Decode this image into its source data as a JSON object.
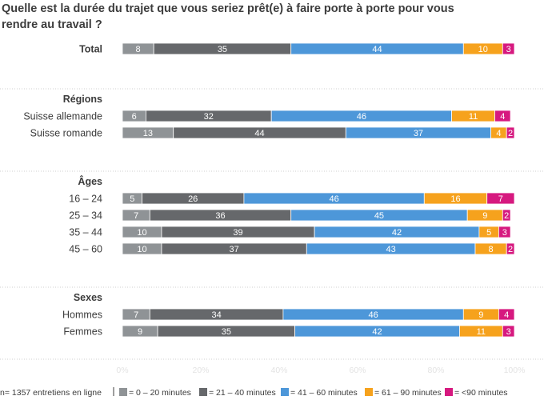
{
  "chart_data": {
    "type": "bar",
    "orientation": "horizontal",
    "stacked": true,
    "title_lines": [
      "Quelle est la durée du trajet que vous seriez prêt(e) à faire porte à porte pour vous",
      "rendre au travail ?"
    ],
    "xlim": [
      0,
      100
    ],
    "x_ticks": [
      "0%",
      "20%",
      "40%",
      "60%",
      "80%",
      "100%"
    ],
    "grid": false,
    "legend_position": "bottom",
    "note": "n= 1357 entretiens en ligne",
    "series": [
      {
        "name": "= 0 – 20 minutes",
        "color": "#8f9396",
        "label_color": "#ffffff"
      },
      {
        "name": "= 21 – 40 minutes",
        "color": "#66686b",
        "label_color": "#ffffff"
      },
      {
        "name": "= 41 – 60 minutes",
        "color": "#4d97d9",
        "label_color": "#ffffff"
      },
      {
        "name": "= 61 – 90 minutes",
        "color": "#f6a21d",
        "label_color": "#ffffff"
      },
      {
        "name": "= <90 minutes",
        "color": "#d6197f",
        "label_color": "#ffffff"
      }
    ],
    "groups": [
      {
        "label": "",
        "rows": [
          {
            "label": "Total",
            "bold": true,
            "values": [
              8,
              35,
              44,
              10,
              3
            ]
          }
        ]
      },
      {
        "label": "Régions",
        "rows": [
          {
            "label": "Suisse allemande",
            "values": [
              6,
              32,
              46,
              11,
              4
            ]
          },
          {
            "label": "Suisse romande",
            "values": [
              13,
              44,
              37,
              4,
              2
            ]
          }
        ]
      },
      {
        "label": "Âges",
        "rows": [
          {
            "label": "16 – 24",
            "values": [
              5,
              26,
              46,
              16,
              7
            ]
          },
          {
            "label": "25 – 34",
            "values": [
              7,
              36,
              45,
              9,
              2
            ]
          },
          {
            "label": "35 – 44",
            "values": [
              10,
              39,
              42,
              5,
              3
            ]
          },
          {
            "label": "45 – 60",
            "values": [
              10,
              37,
              43,
              8,
              2
            ]
          }
        ]
      },
      {
        "label": "Sexes",
        "rows": [
          {
            "label": "Hommes",
            "values": [
              7,
              34,
              46,
              9,
              4
            ]
          },
          {
            "label": "Femmes",
            "values": [
              9,
              35,
              42,
              11,
              3
            ]
          }
        ]
      }
    ]
  }
}
